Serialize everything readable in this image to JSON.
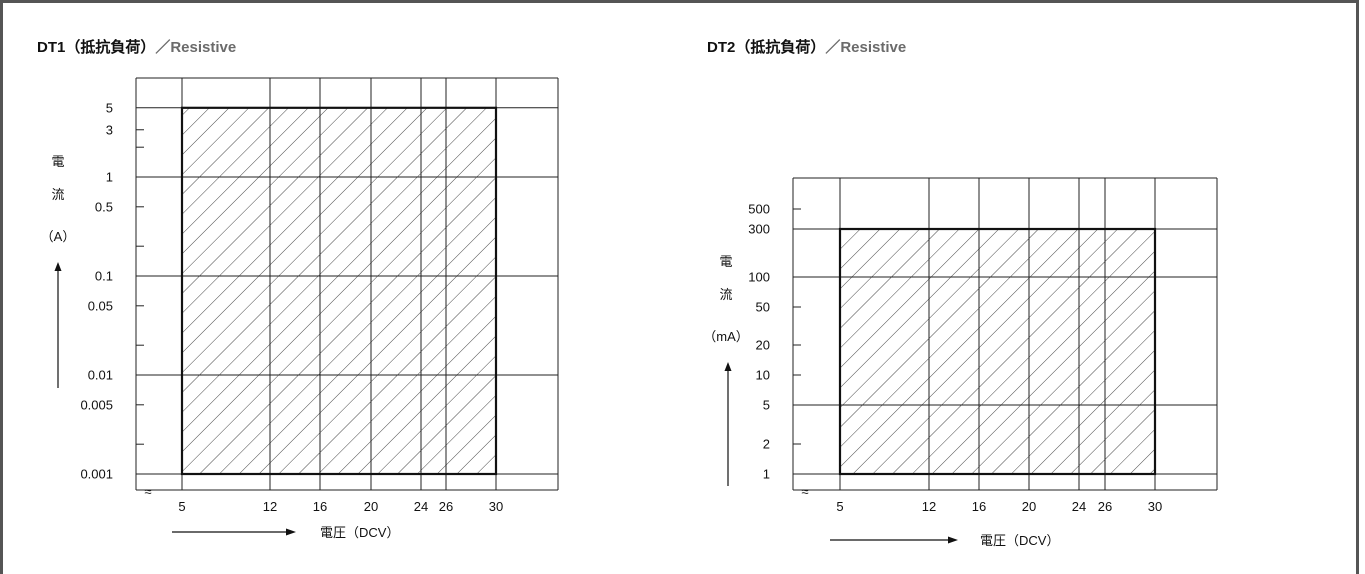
{
  "chart_data": [
    {
      "type": "area",
      "title_main": "DT1（抵抗負荷）",
      "title_sub": "／Resistive",
      "ylabel_chars": [
        "電",
        "流"
      ],
      "ylabel_unit": "（A）",
      "xlabel": "電圧（DCV）",
      "y_scale": "log",
      "ylim": [
        0.001,
        5
      ],
      "xlim": [
        5,
        30
      ],
      "x_ticks": [
        5,
        12,
        16,
        20,
        24,
        26,
        30
      ],
      "y_ticks": [
        {
          "value": 5,
          "label": "5"
        },
        {
          "value": 3,
          "label": "3"
        },
        {
          "value": 1,
          "label": "1"
        },
        {
          "value": 0.5,
          "label": "0.5"
        },
        {
          "value": 0.1,
          "label": "0.1"
        },
        {
          "value": 0.05,
          "label": "0.05"
        },
        {
          "value": 0.01,
          "label": "0.01"
        },
        {
          "value": 0.005,
          "label": "0.005"
        },
        {
          "value": 0.001,
          "label": "0.001"
        }
      ],
      "region": {
        "x": [
          5,
          30
        ],
        "y": [
          0.001,
          5
        ],
        "fill": "hatched"
      },
      "axis_break_symbol": "≈"
    },
    {
      "type": "area",
      "title_main": "DT2（抵抗負荷）",
      "title_sub": "／Resistive",
      "ylabel_chars": [
        "電",
        "流"
      ],
      "ylabel_unit": "（mA）",
      "xlabel": "電圧（DCV）",
      "y_scale": "log",
      "ylim": [
        1,
        300
      ],
      "xlim": [
        5,
        30
      ],
      "x_ticks": [
        5,
        12,
        16,
        20,
        24,
        26,
        30
      ],
      "y_ticks": [
        {
          "value": 500,
          "label": "500"
        },
        {
          "value": 300,
          "label": "300"
        },
        {
          "value": 100,
          "label": "100"
        },
        {
          "value": 50,
          "label": "50"
        },
        {
          "value": 20,
          "label": "20"
        },
        {
          "value": 10,
          "label": "10"
        },
        {
          "value": 5,
          "label": "5"
        },
        {
          "value": 2,
          "label": "2"
        },
        {
          "value": 1,
          "label": "1"
        }
      ],
      "region": {
        "x": [
          5,
          30
        ],
        "y": [
          1,
          300
        ],
        "fill": "hatched"
      },
      "axis_break_symbol": "≈"
    }
  ]
}
